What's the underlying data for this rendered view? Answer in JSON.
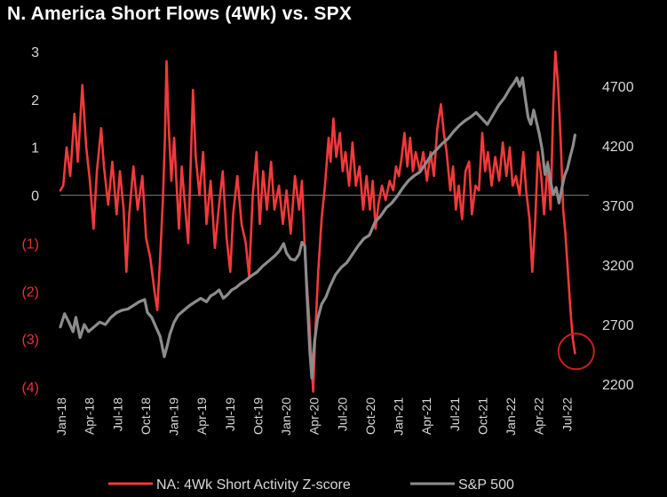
{
  "chart_data": {
    "type": "line",
    "title": "N. America  Short Flows (4Wk) vs. SPX",
    "categories": [
      "Jan-18",
      "Apr-18",
      "Jul-18",
      "Oct-18",
      "Jan-19",
      "Apr-19",
      "Jul-19",
      "Oct-19",
      "Jan-20",
      "Apr-20",
      "Jul-20",
      "Oct-20",
      "Jan-21",
      "Apr-21",
      "Jul-21",
      "Oct-21",
      "Jan-22",
      "Apr-22",
      "Jul-22"
    ],
    "y_left": {
      "ticks": [
        "3",
        "2",
        "1",
        "0",
        "(1)",
        "(2)",
        "(3)",
        "(4)"
      ],
      "tick_values": [
        3,
        2,
        1,
        0,
        -1,
        -2,
        -3,
        -4
      ],
      "range": [
        -4,
        3
      ]
    },
    "y_right": {
      "ticks": [
        "4700",
        "4200",
        "3700",
        "3200",
        "2700",
        "2200"
      ],
      "tick_values": [
        4700,
        4200,
        3700,
        3200,
        2700,
        2200
      ],
      "range": [
        2200,
        4950
      ]
    },
    "series": [
      {
        "name": "NA: 4Wk Short Activity Z-score",
        "axis": "left",
        "color": "#f2393b",
        "points": [
          [
            0,
            0.1
          ],
          [
            0.1,
            0.2
          ],
          [
            0.22,
            1.0
          ],
          [
            0.35,
            0.4
          ],
          [
            0.5,
            1.7
          ],
          [
            0.62,
            0.7
          ],
          [
            0.78,
            2.3
          ],
          [
            0.92,
            1.0
          ],
          [
            1.05,
            0.3
          ],
          [
            1.18,
            -0.7
          ],
          [
            1.3,
            0.5
          ],
          [
            1.45,
            1.4
          ],
          [
            1.55,
            0.6
          ],
          [
            1.7,
            -0.2
          ],
          [
            1.85,
            0.7
          ],
          [
            2.0,
            -0.4
          ],
          [
            2.12,
            0.5
          ],
          [
            2.25,
            -0.3
          ],
          [
            2.35,
            -1.6
          ],
          [
            2.45,
            -0.4
          ],
          [
            2.6,
            0.6
          ],
          [
            2.75,
            -0.3
          ],
          [
            2.92,
            0.4
          ],
          [
            3.05,
            -0.9
          ],
          [
            3.2,
            -1.3
          ],
          [
            3.35,
            -2.0
          ],
          [
            3.45,
            -2.4
          ],
          [
            3.55,
            -1.3
          ],
          [
            3.65,
            -0.1
          ],
          [
            3.72,
            1.2
          ],
          [
            3.78,
            2.8
          ],
          [
            3.85,
            1.5
          ],
          [
            3.95,
            0.3
          ],
          [
            4.05,
            1.2
          ],
          [
            4.12,
            0.4
          ],
          [
            4.22,
            -0.7
          ],
          [
            4.32,
            0.6
          ],
          [
            4.45,
            -0.3
          ],
          [
            4.55,
            -1.0
          ],
          [
            4.62,
            0.3
          ],
          [
            4.72,
            2.2
          ],
          [
            4.82,
            0.8
          ],
          [
            4.95,
            0.0
          ],
          [
            5.08,
            0.9
          ],
          [
            5.2,
            -0.6
          ],
          [
            5.35,
            0.3
          ],
          [
            5.5,
            -1.1
          ],
          [
            5.65,
            -0.2
          ],
          [
            5.78,
            0.5
          ],
          [
            5.92,
            -0.9
          ],
          [
            6.05,
            -1.6
          ],
          [
            6.15,
            -0.4
          ],
          [
            6.3,
            0.4
          ],
          [
            6.45,
            -0.6
          ],
          [
            6.6,
            -1.0
          ],
          [
            6.72,
            -1.7
          ],
          [
            6.85,
            0.0
          ],
          [
            6.98,
            0.9
          ],
          [
            7.1,
            -0.6
          ],
          [
            7.22,
            0.5
          ],
          [
            7.35,
            -0.3
          ],
          [
            7.5,
            0.7
          ],
          [
            7.62,
            -0.3
          ],
          [
            7.78,
            0.2
          ],
          [
            7.92,
            -0.6
          ],
          [
            8.05,
            0.1
          ],
          [
            8.2,
            -0.8
          ],
          [
            8.35,
            0.4
          ],
          [
            8.5,
            -0.3
          ],
          [
            8.6,
            0.3
          ],
          [
            8.72,
            -1.4
          ],
          [
            8.85,
            -2.5
          ],
          [
            8.92,
            -3.3
          ],
          [
            9.0,
            -4.1
          ],
          [
            9.08,
            -2.8
          ],
          [
            9.18,
            -1.6
          ],
          [
            9.3,
            -0.5
          ],
          [
            9.42,
            0.2
          ],
          [
            9.55,
            1.2
          ],
          [
            9.62,
            0.7
          ],
          [
            9.72,
            1.6
          ],
          [
            9.82,
            0.8
          ],
          [
            9.95,
            1.3
          ],
          [
            10.05,
            0.5
          ],
          [
            10.15,
            0.9
          ],
          [
            10.28,
            0.2
          ],
          [
            10.4,
            1.1
          ],
          [
            10.52,
            0.2
          ],
          [
            10.65,
            0.6
          ],
          [
            10.78,
            -0.3
          ],
          [
            10.9,
            0.4
          ],
          [
            11.02,
            -0.3
          ],
          [
            11.12,
            0.3
          ],
          [
            11.22,
            -0.7
          ],
          [
            11.32,
            -0.2
          ],
          [
            11.45,
            0.2
          ],
          [
            11.58,
            -0.1
          ],
          [
            11.72,
            0.3
          ],
          [
            11.85,
            0.1
          ],
          [
            11.95,
            0.6
          ],
          [
            12.05,
            0.4
          ],
          [
            12.15,
            0.8
          ],
          [
            12.25,
            1.3
          ],
          [
            12.35,
            0.6
          ],
          [
            12.45,
            1.2
          ],
          [
            12.55,
            0.5
          ],
          [
            12.65,
            0.9
          ],
          [
            12.8,
            0.5
          ],
          [
            12.92,
            0.9
          ],
          [
            13.05,
            0.3
          ],
          [
            13.18,
            0.9
          ],
          [
            13.3,
            0.4
          ],
          [
            13.42,
            1.4
          ],
          [
            13.55,
            1.9
          ],
          [
            13.65,
            1.3
          ],
          [
            13.75,
            0.9
          ],
          [
            13.88,
            0.1
          ],
          [
            13.98,
            0.6
          ],
          [
            14.08,
            -0.3
          ],
          [
            14.18,
            0.2
          ],
          [
            14.3,
            -0.5
          ],
          [
            14.42,
            0.5
          ],
          [
            14.55,
            0.7
          ],
          [
            14.65,
            -0.4
          ],
          [
            14.78,
            0.2
          ],
          [
            14.9,
            0.1
          ],
          [
            15.02,
            1.3
          ],
          [
            15.12,
            0.5
          ],
          [
            15.22,
            0.9
          ],
          [
            15.35,
            0.2
          ],
          [
            15.48,
            0.8
          ],
          [
            15.62,
            0.3
          ],
          [
            15.75,
            1.1
          ],
          [
            15.88,
            0.4
          ],
          [
            16.0,
            1.0
          ],
          [
            16.1,
            0.2
          ],
          [
            16.22,
            0.4
          ],
          [
            16.35,
            0.0
          ],
          [
            16.48,
            0.9
          ],
          [
            16.58,
            0.1
          ],
          [
            16.7,
            -0.5
          ],
          [
            16.8,
            -1.6
          ],
          [
            16.9,
            -0.6
          ],
          [
            17.0,
            0.9
          ],
          [
            17.12,
            0.4
          ],
          [
            17.22,
            -0.4
          ],
          [
            17.35,
            0.7
          ],
          [
            17.45,
            -0.3
          ],
          [
            17.55,
            1.9
          ],
          [
            17.62,
            3.0
          ],
          [
            17.72,
            2.3
          ],
          [
            17.82,
            1.0
          ],
          [
            17.9,
            -0.3
          ],
          [
            17.98,
            -0.8
          ],
          [
            18.08,
            -1.7
          ],
          [
            18.16,
            -2.4
          ],
          [
            18.24,
            -3.0
          ],
          [
            18.32,
            -3.3
          ]
        ]
      },
      {
        "name": "S&P 500",
        "axis": "right",
        "color": "#8c8c8c",
        "points": [
          [
            0,
            2680
          ],
          [
            0.15,
            2790
          ],
          [
            0.3,
            2720
          ],
          [
            0.45,
            2640
          ],
          [
            0.55,
            2760
          ],
          [
            0.7,
            2590
          ],
          [
            0.85,
            2700
          ],
          [
            1.0,
            2640
          ],
          [
            1.2,
            2680
          ],
          [
            1.4,
            2720
          ],
          [
            1.6,
            2700
          ],
          [
            1.8,
            2760
          ],
          [
            2.0,
            2800
          ],
          [
            2.2,
            2820
          ],
          [
            2.4,
            2830
          ],
          [
            2.6,
            2860
          ],
          [
            2.8,
            2890
          ],
          [
            3.0,
            2910
          ],
          [
            3.1,
            2800
          ],
          [
            3.25,
            2760
          ],
          [
            3.4,
            2680
          ],
          [
            3.55,
            2600
          ],
          [
            3.7,
            2430
          ],
          [
            3.8,
            2520
          ],
          [
            3.9,
            2620
          ],
          [
            4.05,
            2720
          ],
          [
            4.2,
            2780
          ],
          [
            4.4,
            2820
          ],
          [
            4.6,
            2860
          ],
          [
            4.8,
            2890
          ],
          [
            5.0,
            2920
          ],
          [
            5.2,
            2890
          ],
          [
            5.35,
            2940
          ],
          [
            5.5,
            2960
          ],
          [
            5.65,
            2990
          ],
          [
            5.8,
            2920
          ],
          [
            5.95,
            2950
          ],
          [
            6.1,
            2990
          ],
          [
            6.25,
            3010
          ],
          [
            6.4,
            3040
          ],
          [
            6.6,
            3070
          ],
          [
            6.8,
            3110
          ],
          [
            7.0,
            3140
          ],
          [
            7.2,
            3190
          ],
          [
            7.35,
            3220
          ],
          [
            7.5,
            3250
          ],
          [
            7.65,
            3280
          ],
          [
            7.8,
            3320
          ],
          [
            7.95,
            3380
          ],
          [
            8.05,
            3300
          ],
          [
            8.2,
            3250
          ],
          [
            8.35,
            3240
          ],
          [
            8.5,
            3290
          ],
          [
            8.6,
            3390
          ],
          [
            8.7,
            3360
          ],
          [
            8.78,
            2950
          ],
          [
            8.88,
            2480
          ],
          [
            8.95,
            2250
          ],
          [
            9.05,
            2560
          ],
          [
            9.15,
            2740
          ],
          [
            9.3,
            2870
          ],
          [
            9.45,
            2930
          ],
          [
            9.6,
            3020
          ],
          [
            9.8,
            3120
          ],
          [
            10.0,
            3180
          ],
          [
            10.2,
            3220
          ],
          [
            10.4,
            3290
          ],
          [
            10.6,
            3360
          ],
          [
            10.8,
            3420
          ],
          [
            11.0,
            3450
          ],
          [
            11.2,
            3560
          ],
          [
            11.4,
            3610
          ],
          [
            11.6,
            3680
          ],
          [
            11.8,
            3720
          ],
          [
            12.0,
            3780
          ],
          [
            12.2,
            3850
          ],
          [
            12.4,
            3910
          ],
          [
            12.6,
            3950
          ],
          [
            12.8,
            3980
          ],
          [
            13.0,
            4050
          ],
          [
            13.2,
            4120
          ],
          [
            13.4,
            4170
          ],
          [
            13.6,
            4220
          ],
          [
            13.8,
            4260
          ],
          [
            14.0,
            4320
          ],
          [
            14.2,
            4370
          ],
          [
            14.4,
            4410
          ],
          [
            14.6,
            4440
          ],
          [
            14.8,
            4480
          ],
          [
            15.0,
            4430
          ],
          [
            15.2,
            4380
          ],
          [
            15.4,
            4460
          ],
          [
            15.6,
            4540
          ],
          [
            15.8,
            4600
          ],
          [
            16.0,
            4680
          ],
          [
            16.15,
            4730
          ],
          [
            16.25,
            4770
          ],
          [
            16.35,
            4700
          ],
          [
            16.45,
            4770
          ],
          [
            16.55,
            4600
          ],
          [
            16.65,
            4440
          ],
          [
            16.75,
            4380
          ],
          [
            16.85,
            4500
          ],
          [
            16.95,
            4400
          ],
          [
            17.05,
            4300
          ],
          [
            17.15,
            4170
          ],
          [
            17.25,
            3960
          ],
          [
            17.35,
            4050
          ],
          [
            17.45,
            3900
          ],
          [
            17.55,
            3790
          ],
          [
            17.65,
            3850
          ],
          [
            17.75,
            3720
          ],
          [
            17.85,
            3840
          ],
          [
            17.95,
            3950
          ],
          [
            18.05,
            4010
          ],
          [
            18.15,
            4110
          ],
          [
            18.25,
            4200
          ],
          [
            18.32,
            4290
          ]
        ]
      }
    ],
    "annotation": {
      "type": "circle",
      "x": 18.3,
      "y": -3.3,
      "color": "#cc1f1f"
    },
    "legend": {
      "placement": "bottom-center"
    }
  }
}
